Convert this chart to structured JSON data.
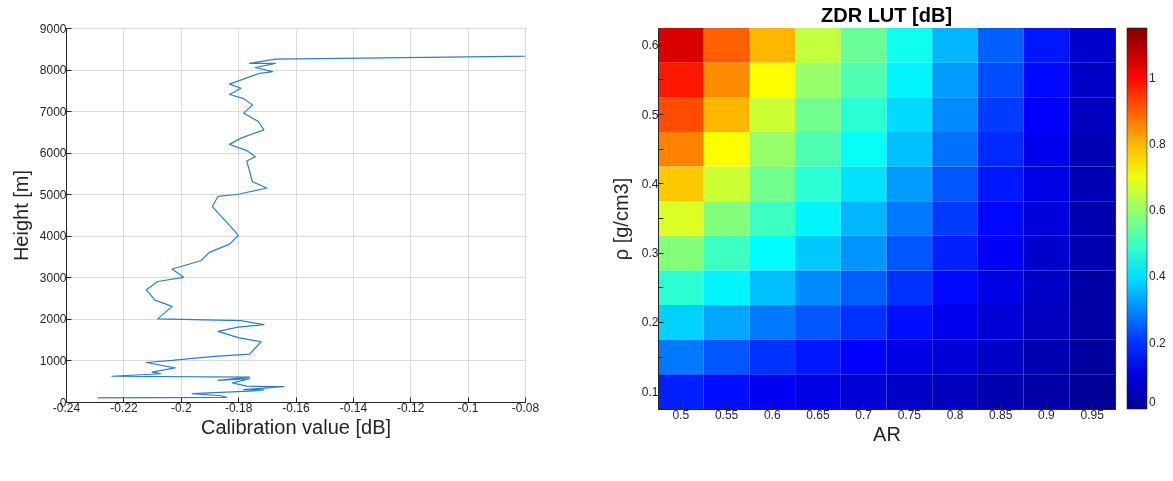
{
  "chart_data": [
    {
      "type": "line",
      "xlabel": "Calibration value [dB]",
      "ylabel": "Height [m]",
      "xlim": [
        -0.24,
        -0.08
      ],
      "xticks": [
        -0.24,
        -0.22,
        -0.2,
        -0.18,
        -0.16,
        -0.14,
        -0.12,
        -0.1,
        -0.08
      ],
      "ylim": [
        0,
        9000
      ],
      "yticks": [
        0,
        1000,
        2000,
        3000,
        4000,
        5000,
        6000,
        7000,
        8000,
        9000
      ],
      "grid": true,
      "legend": false,
      "series": [
        {
          "color": "#2b7fc9",
          "x": [
            -0.229,
            -0.184,
            -0.186,
            -0.196,
            -0.176,
            -0.171,
            -0.178,
            -0.164,
            -0.177,
            -0.182,
            -0.176,
            -0.187,
            -0.176,
            -0.224,
            -0.207,
            -0.21,
            -0.202,
            -0.212,
            -0.203,
            -0.196,
            -0.188,
            -0.176,
            -0.172,
            -0.18,
            -0.187,
            -0.18,
            -0.171,
            -0.179,
            -0.208,
            -0.203,
            -0.209,
            -0.212,
            -0.208,
            -0.199,
            -0.203,
            -0.193,
            -0.19,
            -0.183,
            -0.18,
            -0.181,
            -0.185,
            -0.189,
            -0.187,
            -0.18,
            -0.17,
            -0.175,
            -0.176,
            -0.177,
            -0.174,
            -0.177,
            -0.183,
            -0.179,
            -0.171,
            -0.173,
            -0.178,
            -0.175,
            -0.178,
            -0.183,
            -0.179,
            -0.183,
            -0.177,
            -0.173,
            -0.168,
            -0.174,
            -0.167,
            -0.176,
            -0.167,
            -0.08
          ],
          "values": [
            100,
            110,
            150,
            200,
            260,
            290,
            300,
            370,
            380,
            460,
            560,
            520,
            600,
            620,
            680,
            720,
            820,
            950,
            1000,
            1050,
            1100,
            1150,
            1450,
            1550,
            1700,
            1800,
            1860,
            1960,
            2000,
            2300,
            2450,
            2700,
            2900,
            3000,
            3200,
            3400,
            3600,
            3800,
            4000,
            4100,
            4400,
            4700,
            4950,
            5000,
            5150,
            5300,
            5550,
            5800,
            5900,
            6050,
            6200,
            6350,
            6550,
            6750,
            6950,
            7150,
            7300,
            7400,
            7550,
            7650,
            7800,
            7900,
            7950,
            8050,
            8150,
            8150,
            8250,
            8320
          ]
        }
      ]
    },
    {
      "type": "heatmap",
      "title": "ZDR LUT [dB]",
      "xlabel": "AR",
      "ylabel": "ρ [g/cm3]",
      "clim": [
        0,
        1.15
      ],
      "cticks": [
        0,
        0.2,
        0.4,
        0.6,
        0.8,
        1
      ],
      "categories": [
        "0.5",
        "0.55",
        "0.6",
        "0.65",
        "0.7",
        "0.75",
        "0.8",
        "0.85",
        "0.9",
        "0.95"
      ],
      "y_categories": [
        "0.6",
        null,
        "0.5",
        null,
        "0.4",
        null,
        "0.3",
        null,
        "0.2",
        null,
        "0.1"
      ],
      "cells": [
        [
          1.05,
          0.9,
          0.8,
          0.65,
          0.55,
          0.45,
          0.35,
          0.25,
          0.17,
          0.08
        ],
        [
          0.98,
          0.85,
          0.72,
          0.6,
          0.52,
          0.42,
          0.32,
          0.23,
          0.15,
          0.07
        ],
        [
          0.92,
          0.8,
          0.66,
          0.56,
          0.48,
          0.39,
          0.3,
          0.21,
          0.14,
          0.06
        ],
        [
          0.86,
          0.72,
          0.6,
          0.52,
          0.44,
          0.36,
          0.27,
          0.19,
          0.12,
          0.05
        ],
        [
          0.78,
          0.66,
          0.56,
          0.48,
          0.4,
          0.32,
          0.24,
          0.17,
          0.11,
          0.05
        ],
        [
          0.68,
          0.58,
          0.5,
          0.42,
          0.35,
          0.28,
          0.21,
          0.15,
          0.1,
          0.04
        ],
        [
          0.58,
          0.5,
          0.43,
          0.37,
          0.31,
          0.24,
          0.18,
          0.13,
          0.08,
          0.04
        ],
        [
          0.48,
          0.42,
          0.36,
          0.3,
          0.25,
          0.2,
          0.15,
          0.11,
          0.07,
          0.03
        ],
        [
          0.38,
          0.33,
          0.28,
          0.24,
          0.2,
          0.16,
          0.12,
          0.09,
          0.06,
          0.03
        ],
        [
          0.28,
          0.24,
          0.2,
          0.17,
          0.14,
          0.11,
          0.09,
          0.07,
          0.04,
          0.02
        ],
        [
          0.18,
          0.16,
          0.13,
          0.11,
          0.09,
          0.07,
          0.06,
          0.04,
          0.03,
          0.01
        ]
      ]
    }
  ]
}
